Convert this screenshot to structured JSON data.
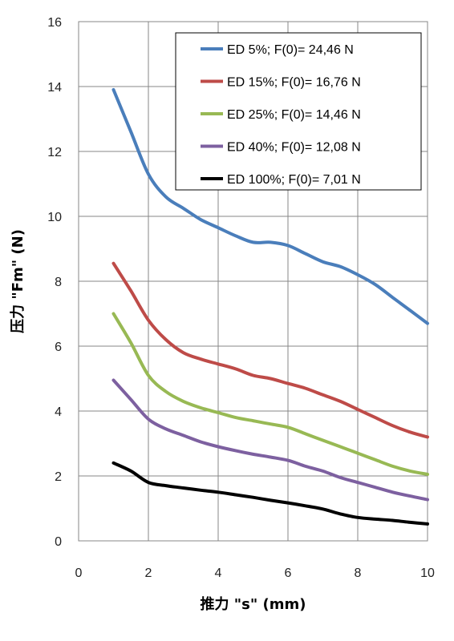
{
  "chart_data": {
    "type": "line",
    "xlabel": "推力 \"s\" (mm)",
    "ylabel": "压力 \"Fm\" (N)",
    "xlim": [
      0,
      10
    ],
    "ylim": [
      0,
      16
    ],
    "xticks": [
      "0",
      "2",
      "4",
      "6",
      "8",
      "10"
    ],
    "yticks": [
      "0",
      "2",
      "4",
      "6",
      "8",
      "10",
      "12",
      "14",
      "16"
    ],
    "grid": true,
    "legend_position": "top-right",
    "series": [
      {
        "name": "ED 5%; F(0)= 24,46 N",
        "color": "#4a7ebb",
        "x": [
          1,
          1.5,
          2,
          2.5,
          3,
          3.5,
          4,
          4.5,
          5,
          5.5,
          6,
          6.5,
          7,
          7.5,
          8,
          8.5,
          9,
          9.5,
          10
        ],
        "y": [
          13.9,
          12.6,
          11.3,
          10.6,
          10.25,
          9.9,
          9.65,
          9.4,
          9.2,
          9.2,
          9.1,
          8.85,
          8.6,
          8.45,
          8.2,
          7.9,
          7.5,
          7.1,
          6.7
        ]
      },
      {
        "name": "ED 15%; F(0)= 16,76 N",
        "color": "#be4b48",
        "x": [
          1,
          1.5,
          2,
          2.5,
          3,
          3.5,
          4,
          4.5,
          5,
          5.5,
          6,
          6.5,
          7,
          7.5,
          8,
          8.5,
          9,
          9.5,
          10
        ],
        "y": [
          8.55,
          7.7,
          6.8,
          6.2,
          5.8,
          5.6,
          5.45,
          5.3,
          5.1,
          5.0,
          4.85,
          4.7,
          4.5,
          4.3,
          4.05,
          3.8,
          3.55,
          3.35,
          3.2
        ]
      },
      {
        "name": "ED 25%; F(0)= 14,46 N",
        "color": "#98b954",
        "x": [
          1,
          1.5,
          2,
          2.5,
          3,
          3.5,
          4,
          4.5,
          5,
          5.5,
          6,
          6.5,
          7,
          7.5,
          8,
          8.5,
          9,
          9.5,
          10
        ],
        "y": [
          7.0,
          6.1,
          5.1,
          4.6,
          4.3,
          4.1,
          3.95,
          3.8,
          3.7,
          3.6,
          3.5,
          3.3,
          3.1,
          2.9,
          2.7,
          2.5,
          2.3,
          2.15,
          2.05
        ]
      },
      {
        "name": "ED 40%; F(0)= 12,08 N",
        "color": "#7d60a0",
        "x": [
          1,
          1.5,
          2,
          2.5,
          3,
          3.5,
          4,
          4.5,
          5,
          5.5,
          6,
          6.5,
          7,
          7.5,
          8,
          8.5,
          9,
          9.5,
          10
        ],
        "y": [
          4.95,
          4.35,
          3.75,
          3.45,
          3.25,
          3.05,
          2.9,
          2.78,
          2.67,
          2.58,
          2.48,
          2.3,
          2.15,
          1.95,
          1.8,
          1.65,
          1.5,
          1.38,
          1.27
        ]
      },
      {
        "name": "ED 100%; F(0)= 7,01 N",
        "color": "#000000",
        "x": [
          1,
          1.5,
          2,
          2.5,
          3,
          3.5,
          4,
          4.5,
          5,
          5.5,
          6,
          6.5,
          7,
          7.5,
          8,
          8.5,
          9,
          9.5,
          10
        ],
        "y": [
          2.4,
          2.15,
          1.8,
          1.7,
          1.63,
          1.56,
          1.5,
          1.42,
          1.34,
          1.25,
          1.17,
          1.08,
          0.98,
          0.83,
          0.72,
          0.67,
          0.63,
          0.57,
          0.52
        ]
      }
    ]
  }
}
